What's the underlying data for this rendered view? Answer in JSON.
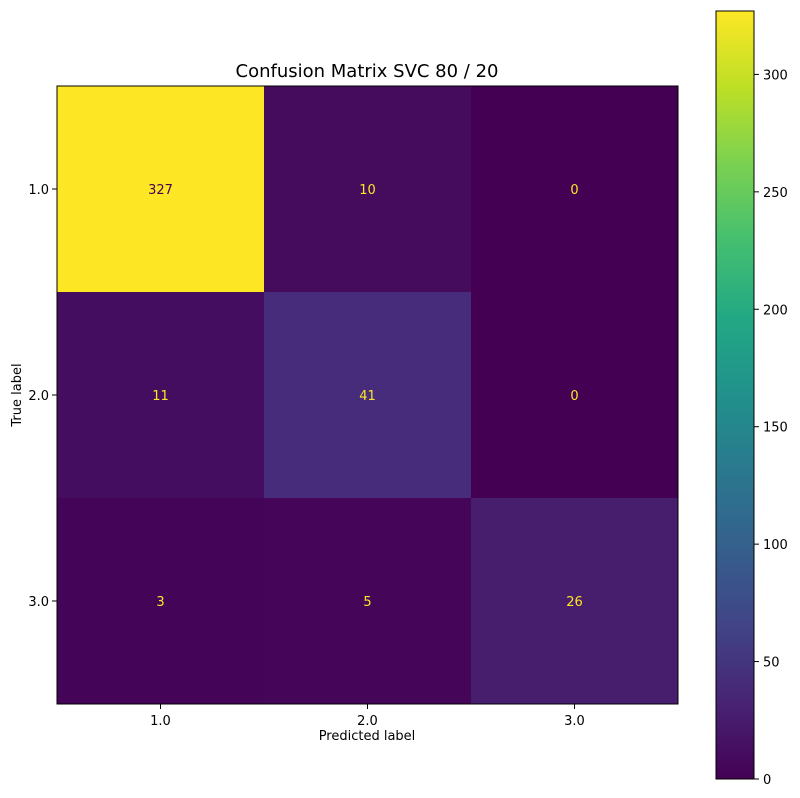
{
  "chart_data": {
    "type": "heatmap",
    "title": "Confusion Matrix SVC 80 / 20",
    "xlabel": "Predicted label",
    "ylabel": "True label",
    "x_categories": [
      "1.0",
      "2.0",
      "3.0"
    ],
    "y_categories": [
      "1.0",
      "2.0",
      "3.0"
    ],
    "matrix": [
      [
        327,
        10,
        0
      ],
      [
        11,
        41,
        0
      ],
      [
        3,
        5,
        26
      ]
    ],
    "colormap": "viridis",
    "colorbar": {
      "range": [
        0,
        327
      ],
      "ticks": [
        0,
        50,
        100,
        150,
        200,
        250,
        300
      ],
      "tick_labels": [
        "0",
        "50",
        "100",
        "150",
        "200",
        "250",
        "300"
      ]
    },
    "cell_text_colors": {
      "on_dark": "#fde725",
      "on_light": "#440154"
    }
  }
}
